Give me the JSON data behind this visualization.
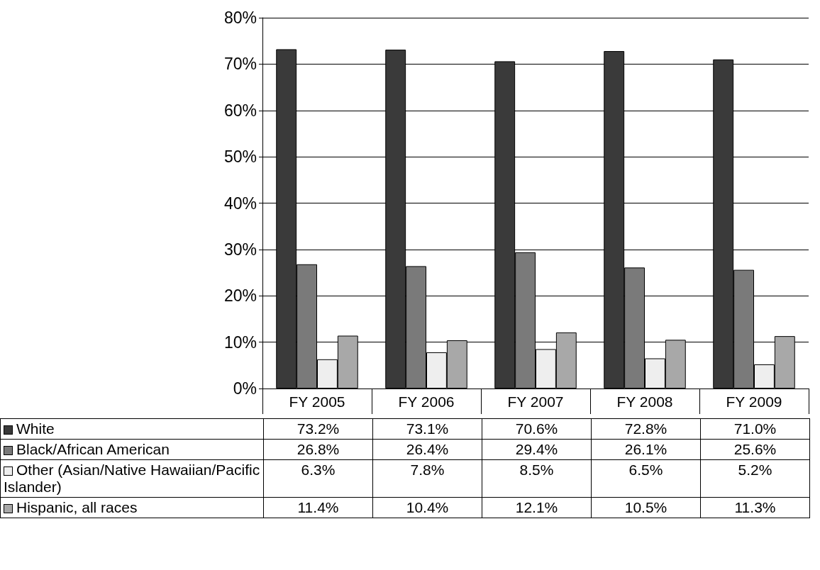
{
  "chart_data": {
    "type": "bar",
    "categories": [
      "FY 2005",
      "FY 2006",
      "FY 2007",
      "FY 2008",
      "FY 2009"
    ],
    "series": [
      {
        "name": "White",
        "color": "#3a3a3a",
        "values": [
          73.2,
          73.1,
          70.6,
          72.8,
          71.0
        ],
        "value_labels": [
          "73.2%",
          "73.1%",
          "70.6%",
          "72.8%",
          "71.0%"
        ]
      },
      {
        "name": "Black/African American",
        "color": "#7a7a7a",
        "values": [
          26.8,
          26.4,
          29.4,
          26.1,
          25.6
        ],
        "value_labels": [
          "26.8%",
          "26.4%",
          "29.4%",
          "26.1%",
          "25.6%"
        ]
      },
      {
        "name": "Other (Asian/Native Hawaiian/Pacific Islander)",
        "color": "#eeeeee",
        "values": [
          6.3,
          7.8,
          8.5,
          6.5,
          5.2
        ],
        "value_labels": [
          "6.3%",
          "7.8%",
          "8.5%",
          "6.5%",
          "5.2%"
        ]
      },
      {
        "name": "Hispanic, all races",
        "color": "#a8a8a8",
        "values": [
          11.4,
          10.4,
          12.1,
          10.5,
          11.3
        ],
        "value_labels": [
          "11.4%",
          "10.4%",
          "12.1%",
          "10.5%",
          "11.3%"
        ]
      }
    ],
    "ylim": [
      0,
      80
    ],
    "yticks": [
      {
        "value": 0,
        "label": "0%"
      },
      {
        "value": 10,
        "label": "10%"
      },
      {
        "value": 20,
        "label": "20%"
      },
      {
        "value": 30,
        "label": "30%"
      },
      {
        "value": 40,
        "label": "40%"
      },
      {
        "value": 50,
        "label": "50%"
      },
      {
        "value": 60,
        "label": "60%"
      },
      {
        "value": 70,
        "label": "70%"
      },
      {
        "value": 80,
        "label": "80%"
      }
    ],
    "grid": "y",
    "legend": "bottom"
  }
}
